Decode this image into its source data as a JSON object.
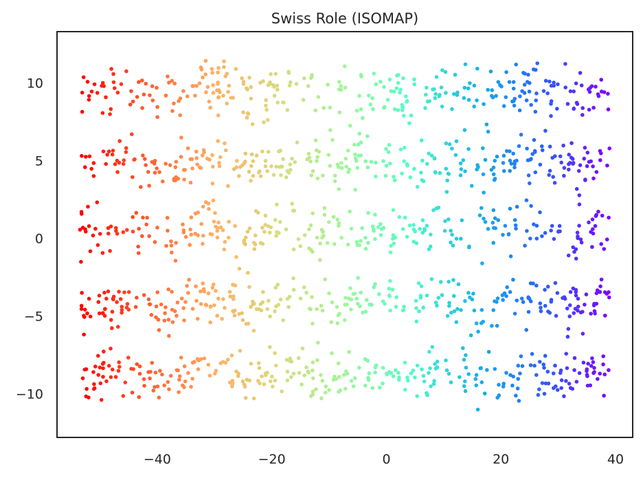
{
  "chart_data": {
    "type": "scatter",
    "title": "Swiss Role (ISOMAP)",
    "xlabel": "",
    "ylabel": "",
    "xlim": [
      -57.5,
      43.0
    ],
    "ylim": [
      -12.8,
      13.3
    ],
    "xticks": [
      {
        "value": -40,
        "label": "−40"
      },
      {
        "value": -20,
        "label": "−20"
      },
      {
        "value": 0,
        "label": "0"
      },
      {
        "value": 20,
        "label": "20"
      },
      {
        "value": 40,
        "label": "40"
      }
    ],
    "yticks": [
      {
        "value": 10,
        "label": "10"
      },
      {
        "value": 5,
        "label": "5"
      },
      {
        "value": 0,
        "label": "0"
      },
      {
        "value": -5,
        "label": "−5"
      },
      {
        "value": -10,
        "label": "−10"
      }
    ],
    "grid": false,
    "colormap": "rainbow",
    "color_by": "x",
    "x_range": [
      -53.5,
      39.0
    ],
    "structure": {
      "bands": [
        {
          "center": 9.5,
          "spread": 1.3
        },
        {
          "center": 4.8,
          "spread": 1.2
        },
        {
          "center": 0.5,
          "spread": 1.2
        },
        {
          "center": -4.2,
          "spread": 1.2
        },
        {
          "center": -8.8,
          "spread": 1.2
        }
      ],
      "wave_amplitude": 1.4,
      "wave_period": 14,
      "n_points": 1500
    },
    "palette": [
      "#ff0000",
      "#ff5a2e",
      "#ffae63",
      "#d8dc7e",
      "#9ff799",
      "#52fbc8",
      "#14b2ea",
      "#2d5ef8",
      "#7f00ff"
    ]
  }
}
